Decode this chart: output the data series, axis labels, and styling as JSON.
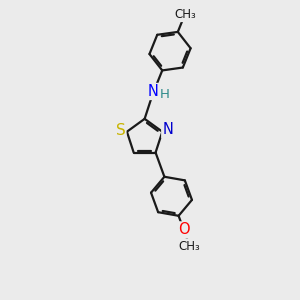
{
  "background_color": "#ebebeb",
  "bond_color": "#1a1a1a",
  "bond_width": 1.6,
  "dbo": 0.055,
  "atom_colors": {
    "S": "#c8b400",
    "N_amine": "#0000ff",
    "N_ring": "#0000cd",
    "O": "#ff0000",
    "H": "#2e8b8b",
    "C": "#1a1a1a"
  },
  "font_size": 9.5,
  "xlim": [
    -2.8,
    2.8
  ],
  "ylim": [
    -4.5,
    3.8
  ]
}
